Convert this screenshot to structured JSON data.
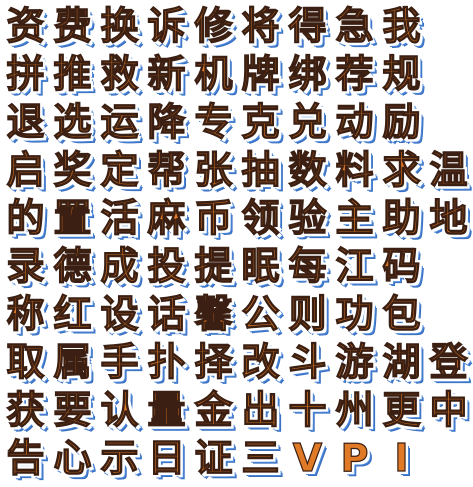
{
  "rows": [
    [
      "资",
      "费",
      "换",
      "诉",
      "修",
      "将",
      "得",
      "急",
      "我"
    ],
    [
      "拼",
      "推",
      "救",
      "新",
      "机",
      "牌",
      "绑",
      "荐",
      "规"
    ],
    [
      "退",
      "选",
      "运",
      "降",
      "专",
      "克",
      "兑",
      "动",
      "励"
    ],
    [
      "启",
      "奖",
      "定",
      "帮",
      "张",
      "抽",
      "数",
      "料",
      "求",
      "温"
    ],
    [
      "的",
      "置",
      "活",
      "麻",
      "币",
      "领",
      "验",
      "主",
      "助",
      "地"
    ],
    [
      "录",
      "德",
      "成",
      "投",
      "提",
      "眠",
      "每",
      "江",
      "码"
    ],
    [
      "称",
      "红",
      "设",
      "话",
      "馨",
      "公",
      "则",
      "功",
      "包"
    ],
    [
      "取",
      "属",
      "手",
      "扑",
      "择",
      "改",
      "斗",
      "游",
      "湖",
      "登"
    ],
    [
      "获",
      "要",
      "认",
      "量",
      "金",
      "出",
      "十",
      "州",
      "更",
      "中"
    ],
    [
      "告",
      "心",
      "示",
      "日",
      "证",
      "三",
      "V",
      "P",
      "I"
    ]
  ],
  "colors": {
    "fill_top": "#f6a448",
    "fill_bottom": "#d8621b",
    "outline": "#3a1f12",
    "halo": "#ffffff",
    "shadow": "#4a86d8"
  }
}
